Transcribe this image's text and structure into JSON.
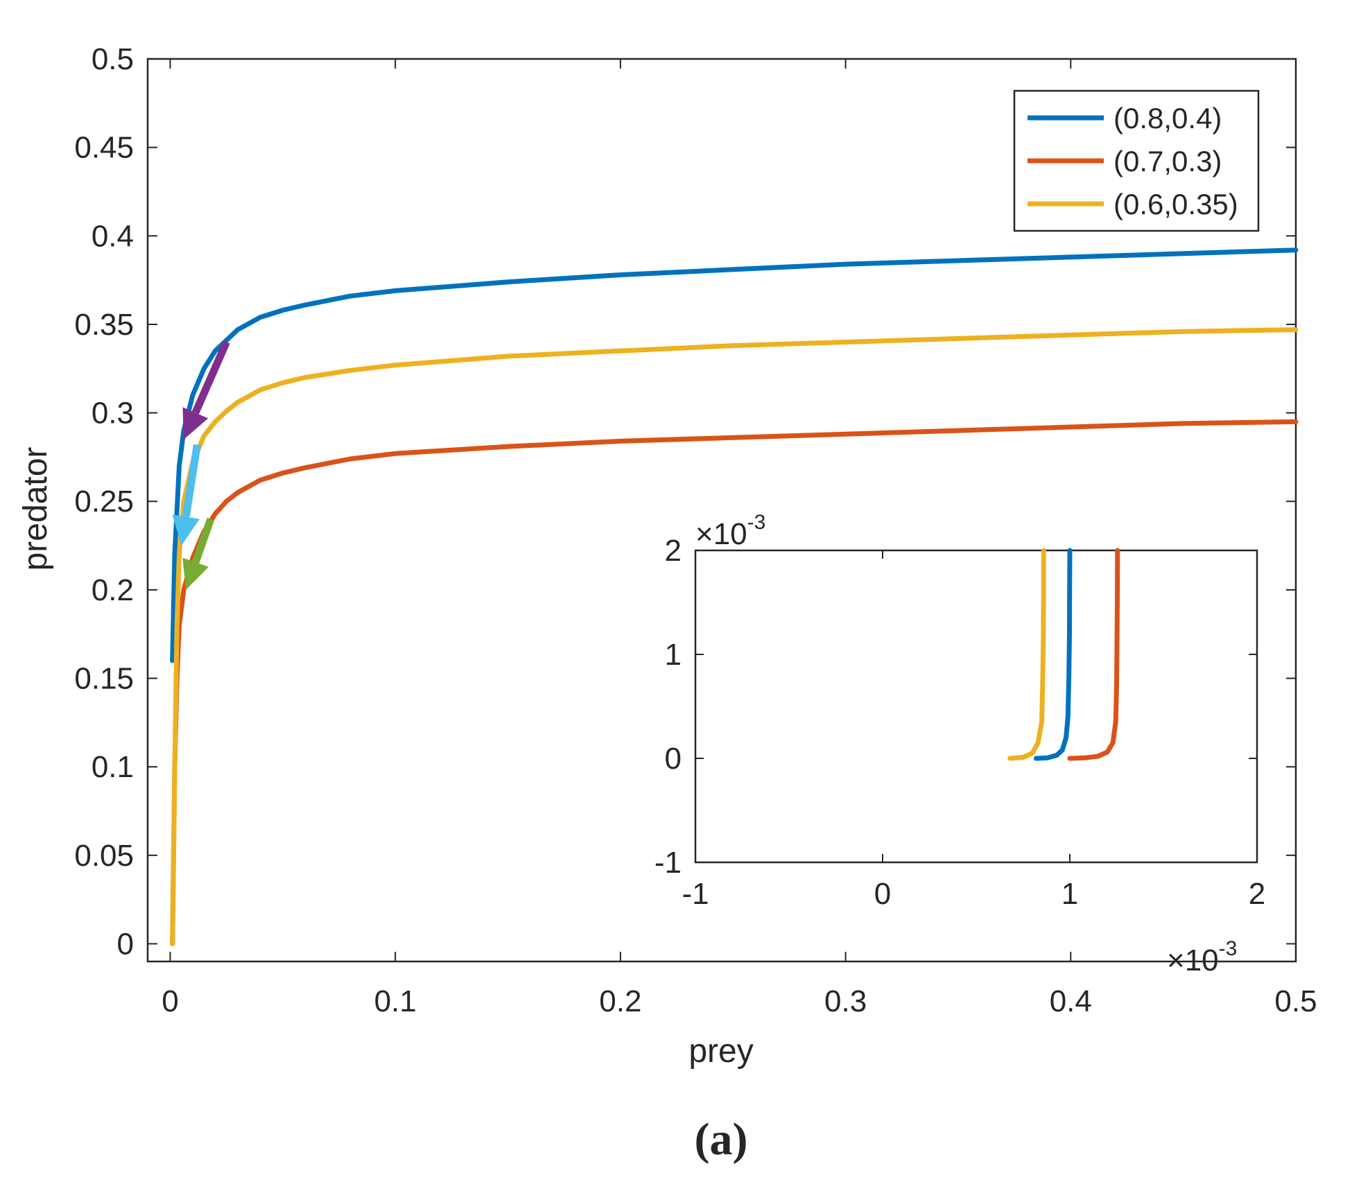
{
  "chart_data": [
    {
      "type": "line",
      "role": "main",
      "title": "",
      "xlabel": "prey",
      "ylabel": "predator",
      "xlim": [
        -0.01,
        0.5
      ],
      "ylim": [
        -0.01,
        0.5
      ],
      "x_ticks": [
        0,
        0.1,
        0.2,
        0.3,
        0.4,
        0.5
      ],
      "x_tick_labels": [
        "0",
        "0.1",
        "0.2",
        "0.3",
        "0.4",
        "0.5"
      ],
      "y_ticks": [
        0,
        0.05,
        0.1,
        0.15,
        0.2,
        0.25,
        0.3,
        0.35,
        0.4,
        0.45,
        0.5
      ],
      "y_tick_labels": [
        "0",
        "0.05",
        "0.1",
        "0.15",
        "0.2",
        "0.25",
        "0.3",
        "0.35",
        "0.4",
        "0.45",
        "0.5"
      ],
      "legend_position": "top-right",
      "series": [
        {
          "name": "(0.8,0.4)",
          "color": "#0072BD",
          "x": [
            0.001,
            0.002,
            0.004,
            0.006,
            0.01,
            0.015,
            0.02,
            0.025,
            0.03,
            0.04,
            0.05,
            0.06,
            0.08,
            0.1,
            0.15,
            0.2,
            0.25,
            0.3,
            0.35,
            0.4,
            0.45,
            0.5
          ],
          "y": [
            0.16,
            0.22,
            0.27,
            0.29,
            0.31,
            0.325,
            0.335,
            0.341,
            0.347,
            0.354,
            0.358,
            0.361,
            0.366,
            0.369,
            0.374,
            0.378,
            0.381,
            0.384,
            0.386,
            0.388,
            0.39,
            0.392
          ]
        },
        {
          "name": "(0.7,0.3)",
          "color": "#D95319",
          "x": [
            0.001,
            0.002,
            0.003,
            0.004,
            0.006,
            0.01,
            0.015,
            0.02,
            0.025,
            0.03,
            0.04,
            0.05,
            0.06,
            0.08,
            0.1,
            0.15,
            0.2,
            0.25,
            0.3,
            0.35,
            0.4,
            0.45,
            0.5
          ],
          "y": [
            0.0,
            0.1,
            0.15,
            0.18,
            0.2,
            0.218,
            0.233,
            0.243,
            0.25,
            0.255,
            0.262,
            0.266,
            0.269,
            0.274,
            0.277,
            0.281,
            0.284,
            0.286,
            0.288,
            0.29,
            0.292,
            0.294,
            0.295
          ]
        },
        {
          "name": "(0.6,0.35)",
          "color": "#EDB120",
          "x": [
            0.001,
            0.002,
            0.003,
            0.004,
            0.006,
            0.01,
            0.015,
            0.02,
            0.025,
            0.03,
            0.04,
            0.05,
            0.06,
            0.08,
            0.1,
            0.15,
            0.2,
            0.25,
            0.3,
            0.35,
            0.4,
            0.45,
            0.5
          ],
          "y": [
            0.0,
            0.1,
            0.18,
            0.22,
            0.25,
            0.272,
            0.287,
            0.295,
            0.301,
            0.306,
            0.313,
            0.317,
            0.32,
            0.324,
            0.327,
            0.332,
            0.335,
            0.338,
            0.34,
            0.342,
            0.344,
            0.346,
            0.347
          ]
        }
      ],
      "arrows": [
        {
          "color": "#7E2F8E",
          "from": [
            0.025,
            0.34
          ],
          "to": [
            0.006,
            0.285
          ]
        },
        {
          "color": "#4DBEEE",
          "from": [
            0.012,
            0.282
          ],
          "to": [
            0.005,
            0.225
          ]
        },
        {
          "color": "#77AC30",
          "from": [
            0.018,
            0.24
          ],
          "to": [
            0.007,
            0.2
          ]
        }
      ]
    },
    {
      "type": "line",
      "role": "inset",
      "xlim": [
        -1,
        2
      ],
      "ylim": [
        -1,
        2
      ],
      "scale_label_base": "×10",
      "scale_label_exponent": "-3",
      "x_ticks": [
        -1,
        0,
        1,
        2
      ],
      "x_tick_labels": [
        "-1",
        "0",
        "1",
        "2"
      ],
      "y_ticks": [
        -1,
        0,
        1,
        2
      ],
      "y_tick_labels": [
        "-1",
        "0",
        "1",
        "2"
      ],
      "series": [
        {
          "name": "(0.8,0.4)",
          "color": "#0072BD",
          "x": [
            0.82,
            0.88,
            0.93,
            0.96,
            0.98,
            0.99,
            0.995,
            0.998,
            0.999,
            1.0
          ],
          "y": [
            0,
            0.005,
            0.03,
            0.08,
            0.2,
            0.4,
            0.8,
            1.2,
            1.6,
            2.0
          ]
        },
        {
          "name": "(0.7,0.3)",
          "color": "#D95319",
          "x": [
            1.0,
            1.08,
            1.15,
            1.2,
            1.23,
            1.245,
            1.25,
            1.252,
            1.254,
            1.255
          ],
          "y": [
            0,
            0.005,
            0.02,
            0.06,
            0.15,
            0.35,
            0.7,
            1.1,
            1.6,
            2.0
          ]
        },
        {
          "name": "(0.6,0.35)",
          "color": "#EDB120",
          "x": [
            0.68,
            0.75,
            0.8,
            0.83,
            0.85,
            0.855,
            0.858,
            0.86,
            0.86
          ],
          "y": [
            0,
            0.01,
            0.05,
            0.15,
            0.35,
            0.7,
            1.1,
            1.6,
            2.0
          ]
        }
      ]
    }
  ],
  "caption": "(a)"
}
